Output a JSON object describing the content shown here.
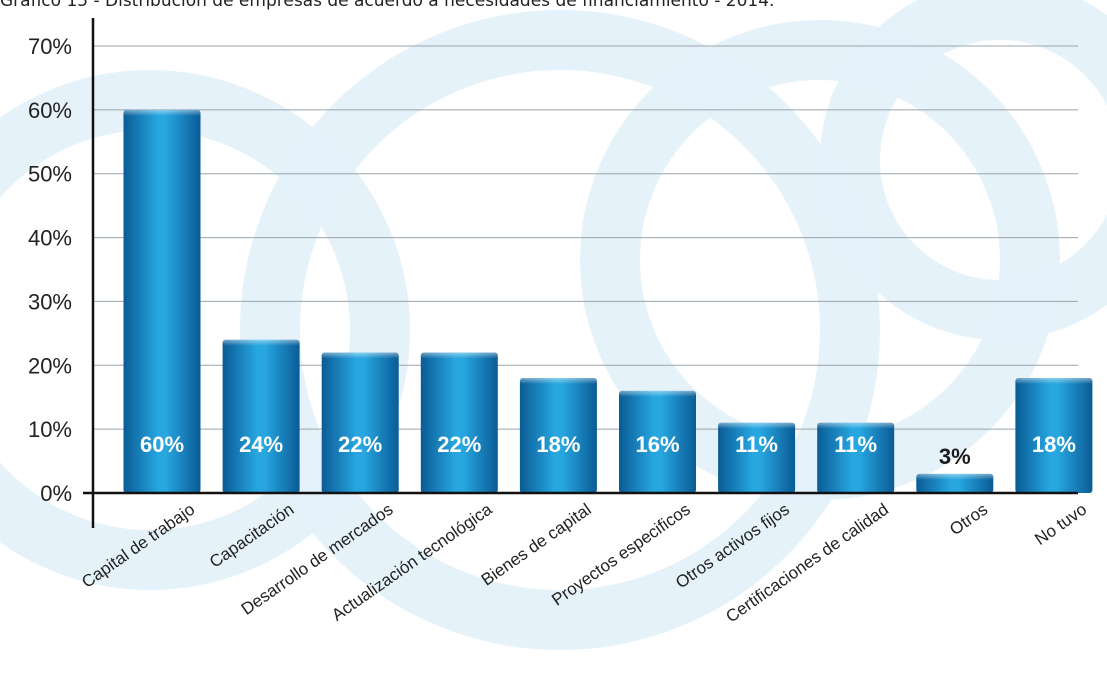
{
  "caption": "Gráfico 15 - Distribución de empresas de acuerdo a necesidades de financiamiento - 2014.",
  "chart_data": {
    "type": "bar",
    "categories": [
      "Capital de trabajo",
      "Capacitación",
      "Desarrollo de mercados",
      "Actualización tecnológica",
      "Bienes de capital",
      "Proyectos especificos",
      "Otros activos fijos",
      "Certificaciones de calidad",
      "Otros",
      "No tuvo"
    ],
    "values": [
      60,
      24,
      22,
      22,
      18,
      16,
      11,
      11,
      3,
      18
    ],
    "data_labels": [
      "60%",
      "24%",
      "22%",
      "22%",
      "18%",
      "16%",
      "11%",
      "11%",
      "3%",
      "18%"
    ],
    "ylim": [
      0,
      70
    ],
    "yticks": [
      "0%",
      "10%",
      "20%",
      "30%",
      "40%",
      "50%",
      "60%",
      "70%"
    ],
    "title": "",
    "xlabel": "",
    "ylabel": "",
    "grid": true,
    "colors": {
      "bar_dark": "#0a5b95",
      "bar_light": "#27a6e0",
      "label_on_bar": "#ffffff",
      "label_above_bar": "#1a1a1a",
      "grid": "#9aa4ad",
      "axis": "#111111",
      "watermark": "#e3f1fa"
    }
  }
}
